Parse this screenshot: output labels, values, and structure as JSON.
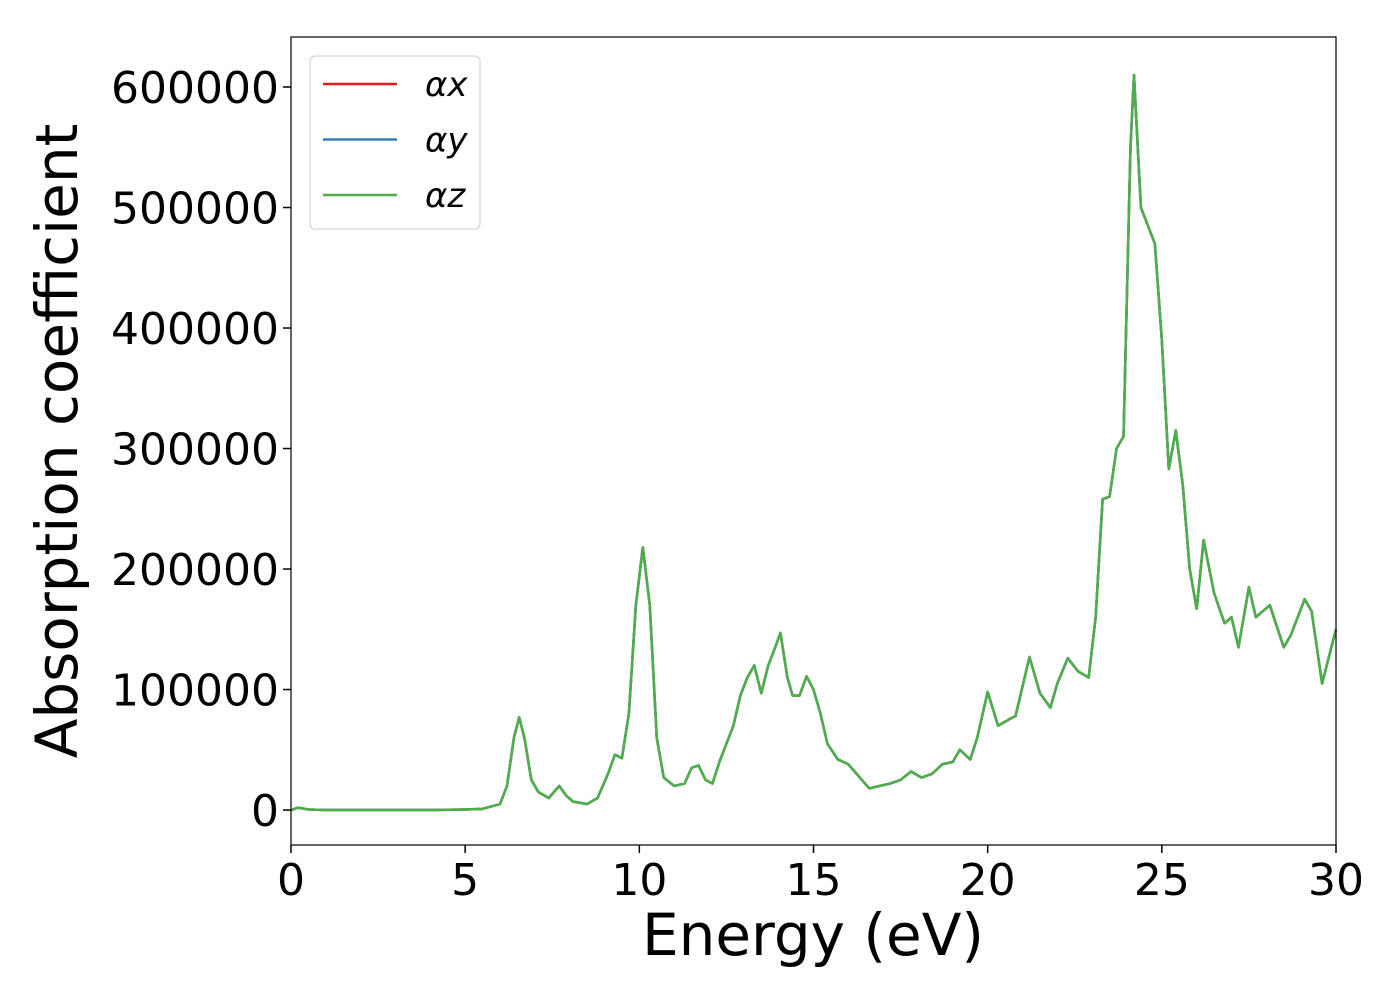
{
  "chart_data": {
    "type": "line",
    "x_label": "Energy (eV)",
    "y_label": "Absorption coefficient",
    "x": [
      0,
      0.2,
      0.5,
      1,
      2,
      3,
      4,
      5,
      5.5,
      6,
      6.2,
      6.4,
      6.55,
      6.7,
      6.9,
      7.1,
      7.4,
      7.7,
      7.9,
      8.1,
      8.5,
      8.8,
      9.1,
      9.3,
      9.5,
      9.7,
      9.9,
      10.1,
      10.3,
      10.5,
      10.7,
      11,
      11.3,
      11.5,
      11.7,
      11.9,
      12.1,
      12.3,
      12.5,
      12.7,
      12.9,
      13.1,
      13.3,
      13.5,
      13.7,
      13.9,
      14.05,
      14.25,
      14.4,
      14.6,
      14.8,
      15,
      15.2,
      15.4,
      15.7,
      16,
      16.3,
      16.6,
      16.9,
      17.2,
      17.5,
      17.8,
      18.1,
      18.4,
      18.7,
      19,
      19.2,
      19.5,
      19.7,
      20,
      20.3,
      20.6,
      20.8,
      21.2,
      21.5,
      21.8,
      22,
      22.3,
      22.6,
      22.9,
      23.1,
      23.3,
      23.5,
      23.7,
      23.9,
      24.1,
      24.2,
      24.4,
      24.6,
      24.8,
      25,
      25.2,
      25.4,
      25.6,
      25.8,
      26,
      26.2,
      26.5,
      26.8,
      27,
      27.2,
      27.5,
      27.7,
      28.1,
      28.5,
      28.7,
      29.1,
      29.3,
      29.6,
      30
    ],
    "series": [
      {
        "name": "αx",
        "color": "#e41a1c",
        "values": [
          0,
          2000,
          500,
          0,
          0,
          0,
          0,
          500,
          1000,
          5000,
          20000,
          60000,
          77000,
          60000,
          25000,
          15000,
          10000,
          20000,
          12000,
          7000,
          5000,
          10000,
          30000,
          46000,
          43000,
          80000,
          170000,
          218000,
          170000,
          60000,
          27000,
          20000,
          22000,
          35000,
          37000,
          25000,
          22000,
          40000,
          55000,
          70000,
          95000,
          110000,
          120000,
          97000,
          120000,
          135000,
          147000,
          110000,
          95000,
          95000,
          111000,
          100000,
          80000,
          55000,
          42000,
          38000,
          28000,
          18000,
          20000,
          22000,
          25000,
          32000,
          27000,
          30000,
          38000,
          40000,
          50000,
          42000,
          60000,
          98000,
          70000,
          75000,
          78000,
          127000,
          97000,
          85000,
          105000,
          126000,
          115000,
          110000,
          160000,
          258000,
          260000,
          300000,
          310000,
          550000,
          610000,
          500000,
          485000,
          470000,
          390000,
          283000,
          315000,
          270000,
          200000,
          167000,
          224000,
          180000,
          155000,
          160000,
          135000,
          185000,
          160000,
          170000,
          135000,
          145000,
          175000,
          165000,
          105000,
          150000
        ]
      },
      {
        "name": "αy",
        "color": "#377eb8",
        "values": [
          0,
          2000,
          500,
          0,
          0,
          0,
          0,
          500,
          1000,
          5000,
          20000,
          60000,
          77000,
          60000,
          25000,
          15000,
          10000,
          20000,
          12000,
          7000,
          5000,
          10000,
          30000,
          46000,
          43000,
          80000,
          170000,
          218000,
          170000,
          60000,
          27000,
          20000,
          22000,
          35000,
          37000,
          25000,
          22000,
          40000,
          55000,
          70000,
          95000,
          110000,
          120000,
          97000,
          120000,
          135000,
          147000,
          110000,
          95000,
          95000,
          111000,
          100000,
          80000,
          55000,
          42000,
          38000,
          28000,
          18000,
          20000,
          22000,
          25000,
          32000,
          27000,
          30000,
          38000,
          40000,
          50000,
          42000,
          60000,
          98000,
          70000,
          75000,
          78000,
          127000,
          97000,
          85000,
          105000,
          126000,
          115000,
          110000,
          160000,
          258000,
          260000,
          300000,
          310000,
          550000,
          610000,
          500000,
          485000,
          470000,
          390000,
          283000,
          315000,
          270000,
          200000,
          167000,
          224000,
          180000,
          155000,
          160000,
          135000,
          185000,
          160000,
          170000,
          135000,
          145000,
          175000,
          165000,
          105000,
          150000
        ]
      },
      {
        "name": "αz",
        "color": "#4daf4a",
        "values": [
          0,
          2000,
          500,
          0,
          0,
          0,
          0,
          500,
          1000,
          5000,
          20000,
          60000,
          77000,
          60000,
          25000,
          15000,
          10000,
          20000,
          12000,
          7000,
          5000,
          10000,
          30000,
          46000,
          43000,
          80000,
          170000,
          218000,
          170000,
          60000,
          27000,
          20000,
          22000,
          35000,
          37000,
          25000,
          22000,
          40000,
          55000,
          70000,
          95000,
          110000,
          120000,
          97000,
          120000,
          135000,
          147000,
          110000,
          95000,
          95000,
          111000,
          100000,
          80000,
          55000,
          42000,
          38000,
          28000,
          18000,
          20000,
          22000,
          25000,
          32000,
          27000,
          30000,
          38000,
          40000,
          50000,
          42000,
          60000,
          98000,
          70000,
          75000,
          78000,
          127000,
          97000,
          85000,
          105000,
          126000,
          115000,
          110000,
          160000,
          258000,
          260000,
          300000,
          310000,
          550000,
          610000,
          500000,
          485000,
          470000,
          390000,
          283000,
          315000,
          270000,
          200000,
          167000,
          224000,
          180000,
          155000,
          160000,
          135000,
          185000,
          160000,
          170000,
          135000,
          145000,
          175000,
          165000,
          105000,
          150000
        ]
      }
    ],
    "xlim": [
      0,
      30
    ],
    "xticks": [
      0,
      5,
      10,
      15,
      20,
      25,
      30
    ],
    "ylim": [
      -29000,
      641500
    ],
    "yticks": [
      0,
      100000,
      200000,
      300000,
      400000,
      500000,
      600000
    ],
    "grid": false,
    "legend": "upper left"
  }
}
